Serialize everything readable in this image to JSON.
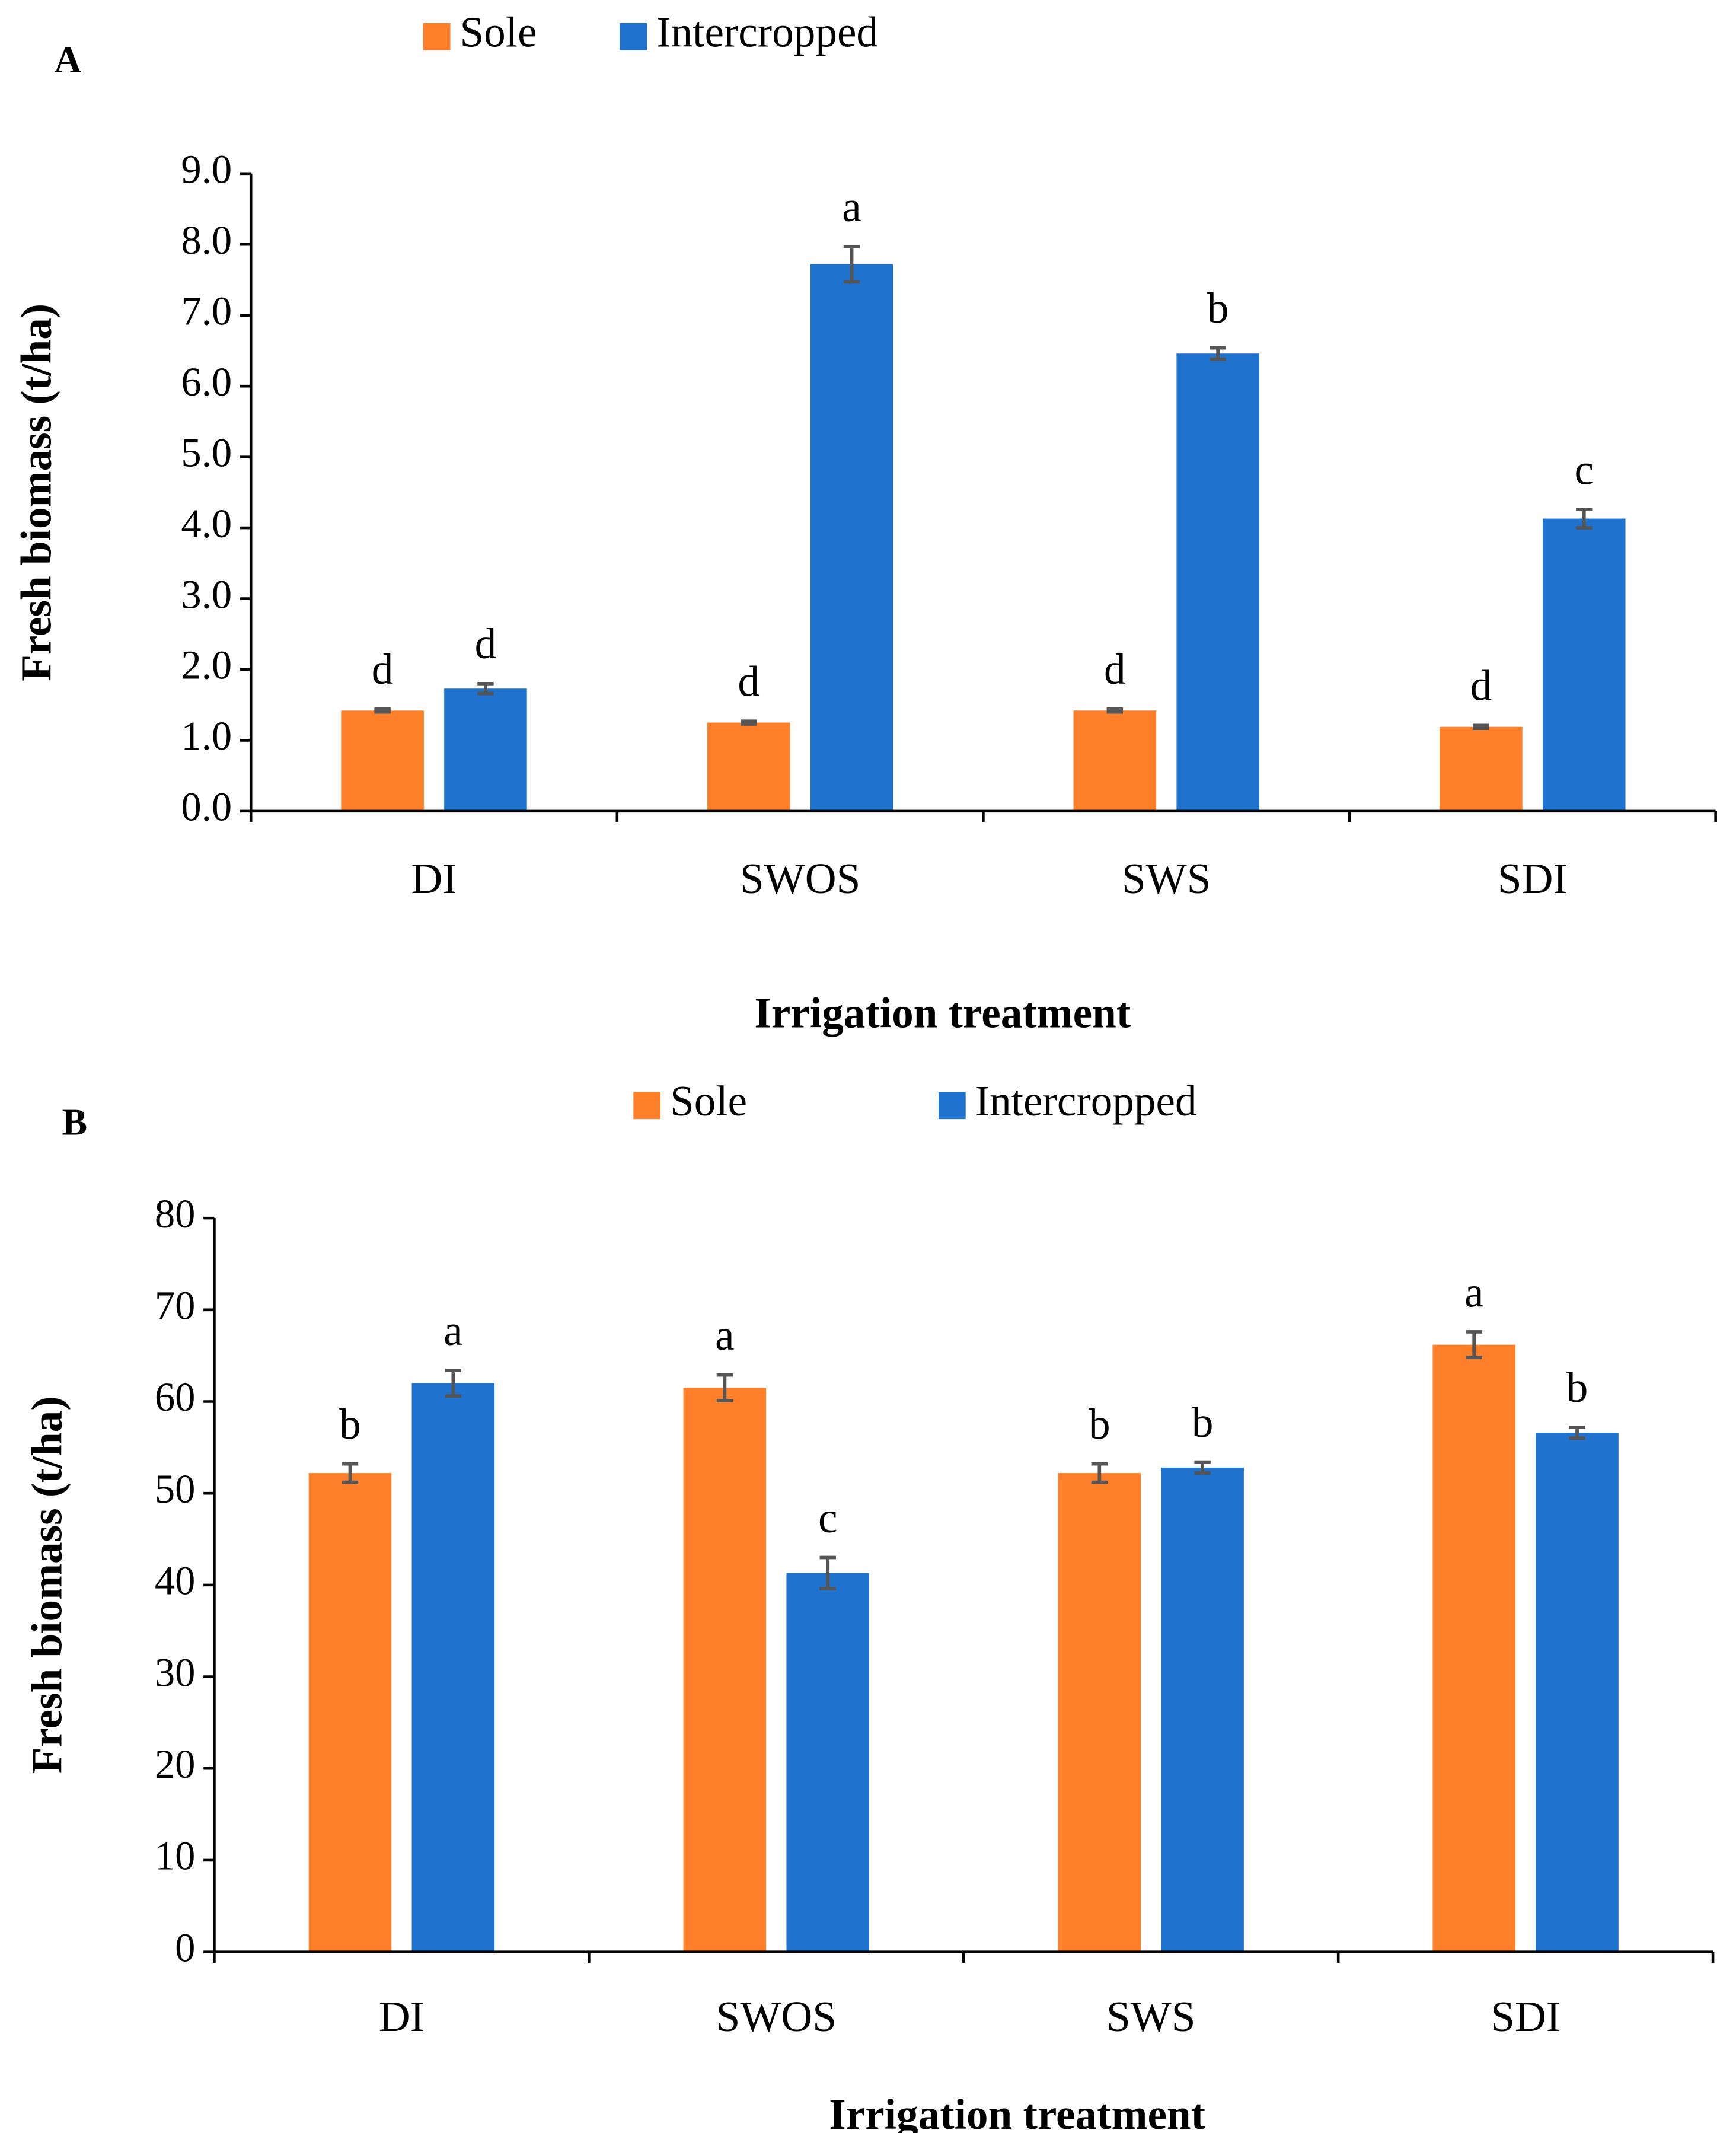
{
  "chart_data": [
    {
      "type": "bar",
      "panel_label": "A",
      "ylabel": "Fresh biomass (t/ha)",
      "xlabel": "Irrigation treatment",
      "categories": [
        "DI",
        "SWOS",
        "SWS",
        "SDI"
      ],
      "series": [
        {
          "name": "Sole",
          "color": "#fe7f2a",
          "values": [
            1.42,
            1.25,
            1.42,
            1.19
          ],
          "errors": [
            0.02,
            0.02,
            0.02,
            0.02
          ],
          "labels": [
            "d",
            "d",
            "d",
            "d"
          ]
        },
        {
          "name": "Intercropped",
          "color": "#1f72ce",
          "values": [
            1.73,
            7.72,
            6.46,
            4.13
          ],
          "errors": [
            0.07,
            0.25,
            0.08,
            0.13
          ],
          "labels": [
            "d",
            "a",
            "b",
            "c"
          ]
        }
      ],
      "ylim": [
        0,
        9
      ],
      "yticks": [
        {
          "value": 0,
          "label": "0.0"
        },
        {
          "value": 1,
          "label": "1.0"
        },
        {
          "value": 2,
          "label": "2.0"
        },
        {
          "value": 3,
          "label": "3.0"
        },
        {
          "value": 4,
          "label": "4.0"
        },
        {
          "value": 5,
          "label": "5.0"
        },
        {
          "value": 6,
          "label": "6.0"
        },
        {
          "value": 7,
          "label": "7.0"
        },
        {
          "value": 8,
          "label": "8.0"
        },
        {
          "value": 9,
          "label": "9.0"
        }
      ],
      "legend": "top"
    },
    {
      "type": "bar",
      "panel_label": "B",
      "ylabel": "Fresh biomass (t/ha)",
      "xlabel": "Irrigation treatment",
      "categories": [
        "DI",
        "SWOS",
        "SWS",
        "SDI"
      ],
      "series": [
        {
          "name": "Sole",
          "color": "#fe7f2a",
          "values": [
            52.2,
            61.5,
            52.2,
            66.2
          ],
          "errors": [
            1.0,
            1.4,
            1.0,
            1.4
          ],
          "labels": [
            "b",
            "a",
            "b",
            "a"
          ]
        },
        {
          "name": "Intercropped",
          "color": "#1f72ce",
          "values": [
            62.0,
            41.3,
            52.8,
            56.6
          ],
          "errors": [
            1.4,
            1.7,
            0.6,
            0.6
          ],
          "labels": [
            "a",
            "c",
            "b",
            "b"
          ]
        }
      ],
      "ylim": [
        0,
        80
      ],
      "yticks": [
        0,
        10,
        20,
        30,
        40,
        50,
        60,
        70,
        80
      ],
      "legend": "top"
    }
  ]
}
